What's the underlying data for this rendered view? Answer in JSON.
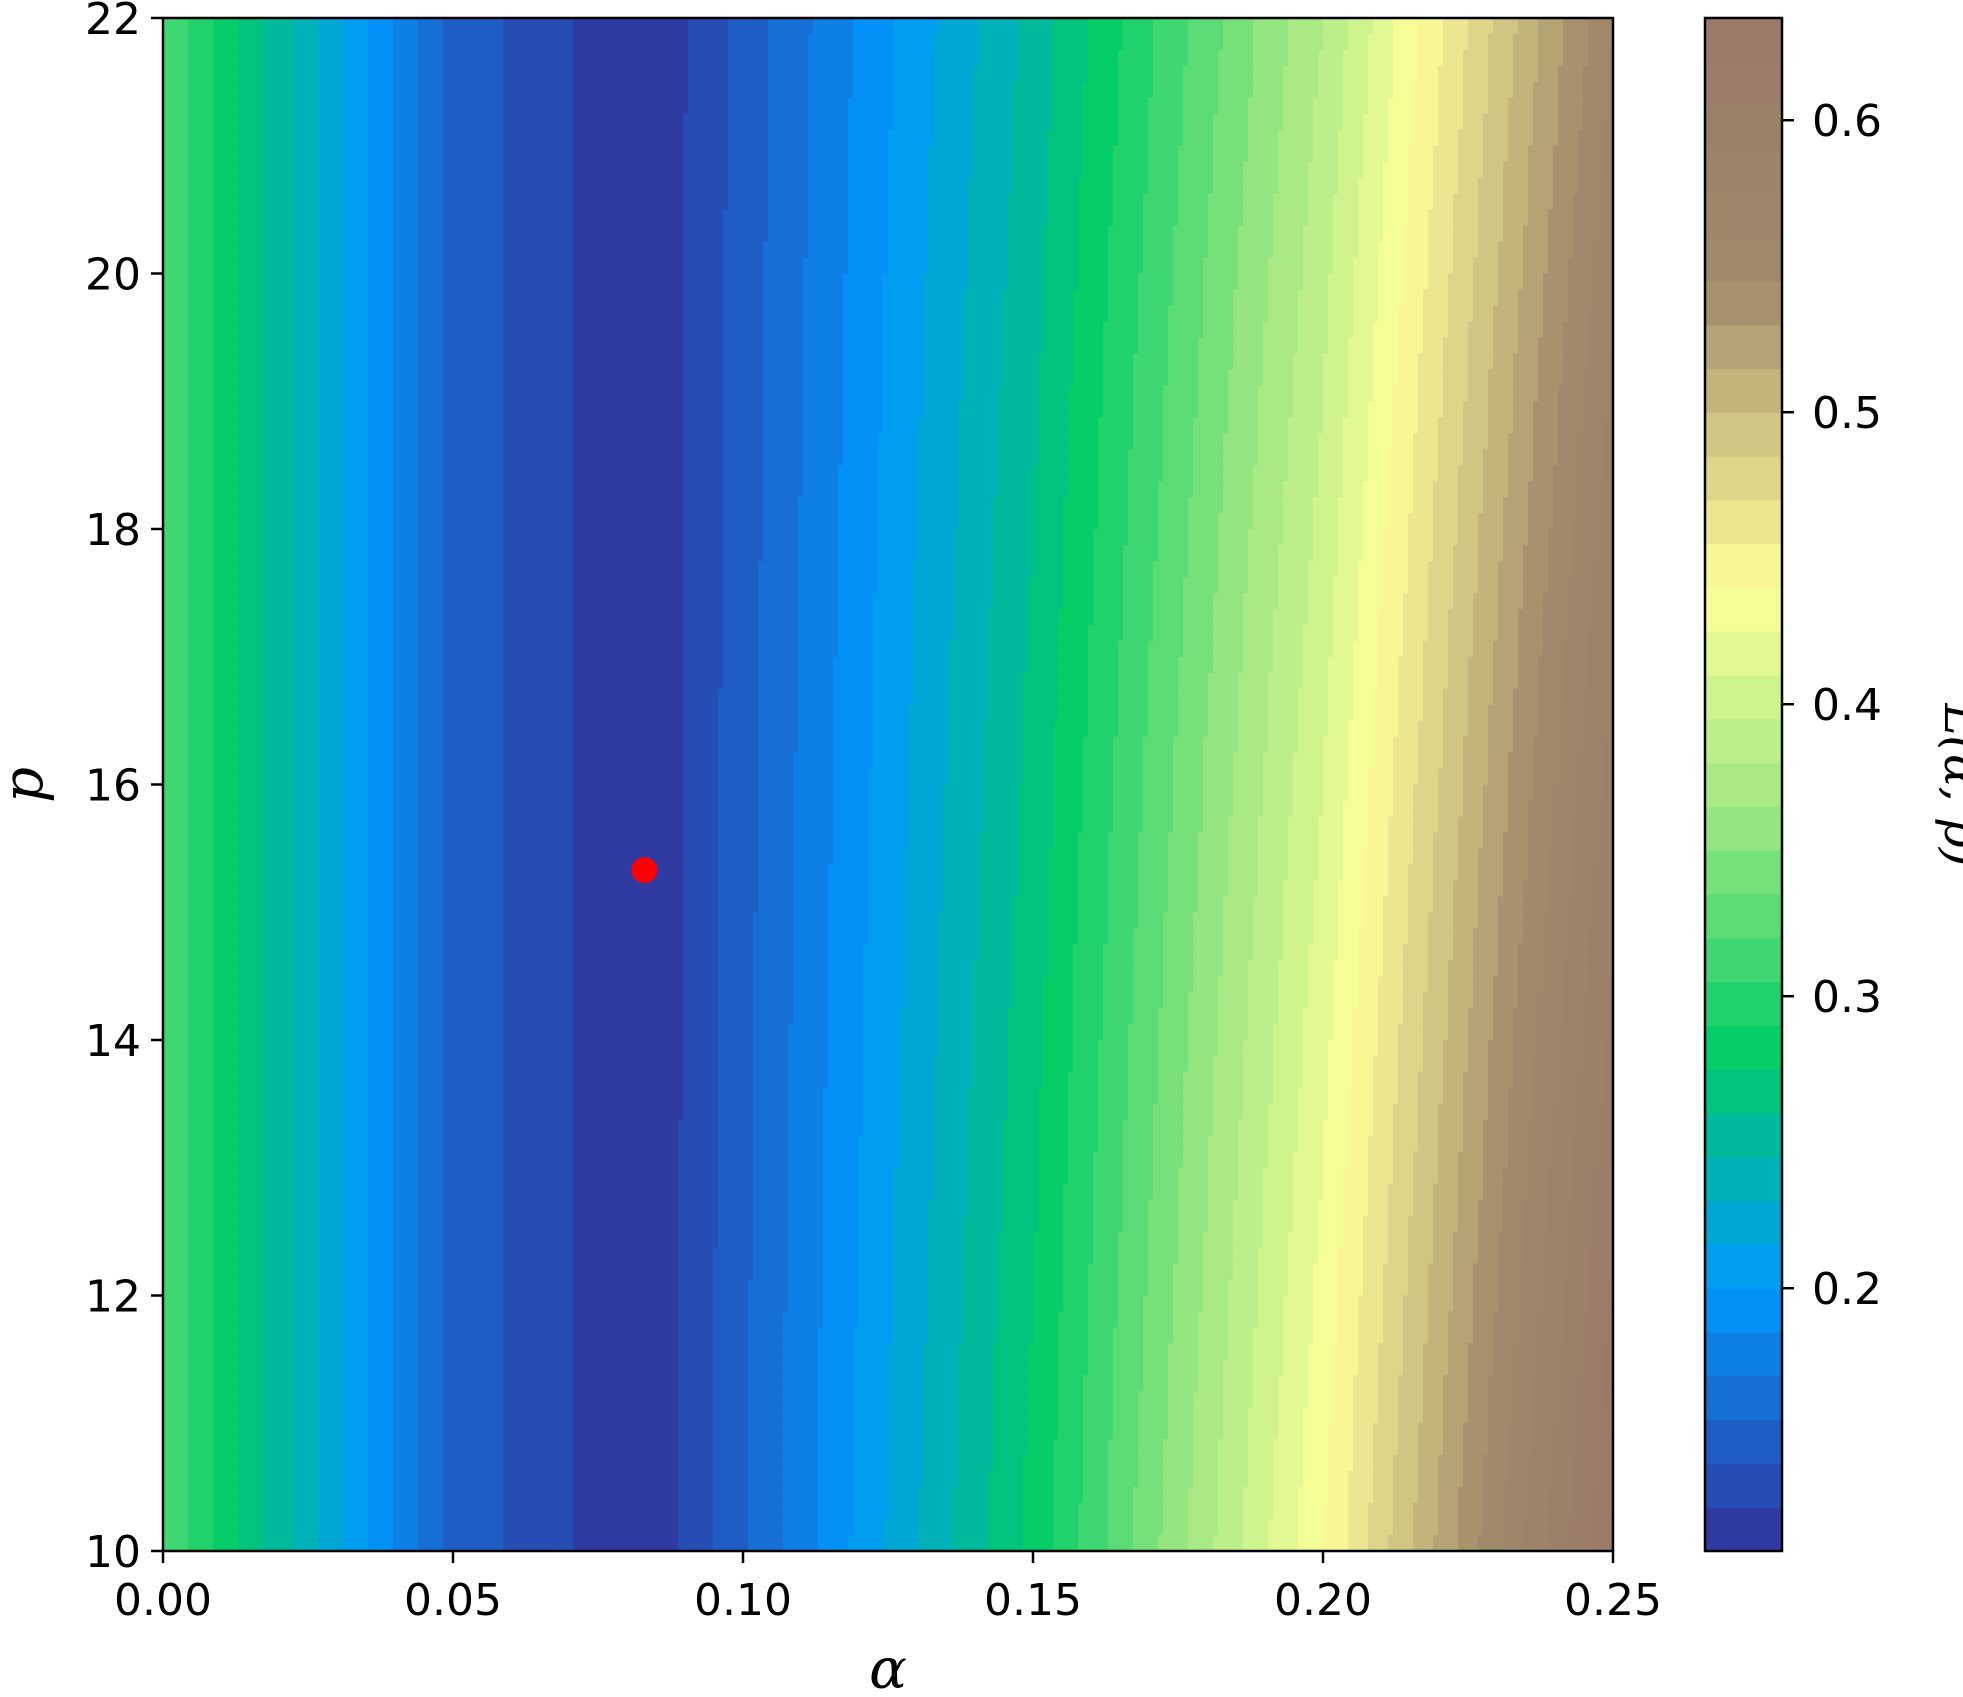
{
  "chart_data": {
    "type": "heatmap",
    "subtype": "filled-contour",
    "title": "",
    "xlabel": "α",
    "ylabel": "p",
    "colorbar_label": "L(α, p)",
    "xlim": [
      0.0,
      0.25
    ],
    "ylim": [
      10,
      22
    ],
    "x_ticks": [
      0.0,
      0.05,
      0.1,
      0.15,
      0.2,
      0.25
    ],
    "x_tick_labels": [
      "0.00",
      "0.05",
      "0.10",
      "0.15",
      "0.20",
      "0.25"
    ],
    "y_ticks": [
      10,
      12,
      14,
      16,
      18,
      20,
      22
    ],
    "y_tick_labels": [
      "10",
      "12",
      "14",
      "16",
      "18",
      "20",
      "22"
    ],
    "colorbar_range": [
      0.11,
      0.635
    ],
    "colorbar_ticks": [
      0.2,
      0.3,
      0.4,
      0.5,
      0.6
    ],
    "colorbar_tick_labels": [
      "0.2",
      "0.3",
      "0.4",
      "0.5",
      "0.6"
    ],
    "contour_level_step": 0.015,
    "colormap": "terrain",
    "colormap_stops": [
      {
        "v": 0.11,
        "color": "#333399"
      },
      {
        "v": 0.2,
        "color": "#0099ff"
      },
      {
        "v": 0.28,
        "color": "#00cc66"
      },
      {
        "v": 0.36,
        "color": "#99e680"
      },
      {
        "v": 0.44,
        "color": "#ffff99"
      },
      {
        "v": 0.545,
        "color": "#a08a6a"
      },
      {
        "v": 0.635,
        "color": "#997a6a"
      }
    ],
    "minimum_loss": 0.11,
    "loss_function_samples": [
      {
        "alpha": 0.0,
        "L_at_p10": 0.32,
        "L_at_p22": 0.32
      },
      {
        "alpha": 0.05,
        "L_at_p10": 0.15,
        "L_at_p22": 0.15
      },
      {
        "alpha": 0.083,
        "L_at_p10": 0.11,
        "L_at_p22": 0.11
      },
      {
        "alpha": 0.15,
        "L_at_p10": 0.28,
        "L_at_p22": 0.25
      },
      {
        "alpha": 0.2,
        "L_at_p10": 0.44,
        "L_at_p22": 0.38
      },
      {
        "alpha": 0.25,
        "L_at_p10": 0.635,
        "L_at_p22": 0.56
      }
    ],
    "marker": {
      "alpha": 0.083,
      "p": 15.33,
      "color": "#ff0000"
    }
  }
}
